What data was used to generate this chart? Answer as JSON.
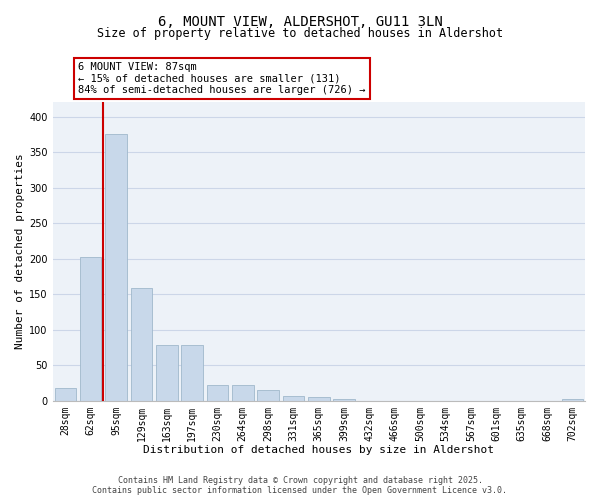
{
  "title": "6, MOUNT VIEW, ALDERSHOT, GU11 3LN",
  "subtitle": "Size of property relative to detached houses in Aldershot",
  "xlabel": "Distribution of detached houses by size in Aldershot",
  "ylabel": "Number of detached properties",
  "bar_color": "#c8d8ea",
  "bar_edge_color": "#a0b8cc",
  "grid_color": "#ccd6e8",
  "background_color": "#edf2f8",
  "vline_color": "#cc0000",
  "categories": [
    "28sqm",
    "62sqm",
    "95sqm",
    "129sqm",
    "163sqm",
    "197sqm",
    "230sqm",
    "264sqm",
    "298sqm",
    "331sqm",
    "365sqm",
    "399sqm",
    "432sqm",
    "466sqm",
    "500sqm",
    "534sqm",
    "567sqm",
    "601sqm",
    "635sqm",
    "668sqm",
    "702sqm"
  ],
  "values": [
    18,
    202,
    375,
    158,
    79,
    79,
    22,
    22,
    15,
    7,
    5,
    3,
    0,
    0,
    0,
    0,
    0,
    0,
    0,
    0,
    3
  ],
  "ylim": [
    0,
    420
  ],
  "yticks": [
    0,
    50,
    100,
    150,
    200,
    250,
    300,
    350,
    400
  ],
  "vline_x_idx": 2,
  "annotation_line1": "6 MOUNT VIEW: 87sqm",
  "annotation_line2": "← 15% of detached houses are smaller (131)",
  "annotation_line3": "84% of semi-detached houses are larger (726) →",
  "footer_line1": "Contains HM Land Registry data © Crown copyright and database right 2025.",
  "footer_line2": "Contains public sector information licensed under the Open Government Licence v3.0.",
  "title_fontsize": 10,
  "subtitle_fontsize": 8.5,
  "axis_label_fontsize": 8,
  "tick_fontsize": 7,
  "annotation_fontsize": 7.5,
  "footer_fontsize": 6
}
